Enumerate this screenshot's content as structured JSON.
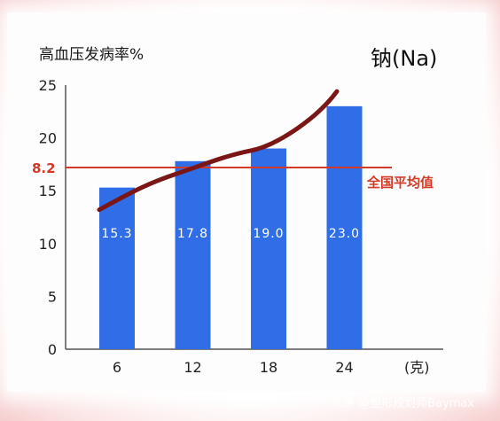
{
  "chart_data": {
    "type": "bar",
    "element_label": "钠(Na)",
    "ylabel": "高血压发病率%",
    "xlabel": "(克)",
    "categories": [
      "6",
      "12",
      "18",
      "24"
    ],
    "values": [
      15.3,
      17.8,
      19.0,
      23.0
    ],
    "data_labels": [
      "15.3",
      "17.8",
      "19.0",
      "23.0"
    ],
    "yticks": [
      "25",
      "20",
      "15",
      "10",
      "5",
      "0"
    ],
    "ylim": [
      0,
      25
    ],
    "trend_line": {
      "x": [
        6,
        12,
        18,
        24
      ],
      "values": [
        13.2,
        16.6,
        18.8,
        24.4
      ]
    },
    "reference_line": {
      "tick_label": "8.2",
      "label": "全国平均值",
      "y_position_value": 17.2
    },
    "grid": false,
    "colors": {
      "bar": "#2f6ee6",
      "trend": "#7a1616",
      "reference": "#d23a27",
      "axis": "#555555"
    }
  },
  "watermark": "头条 @塑形规划师Baymax"
}
